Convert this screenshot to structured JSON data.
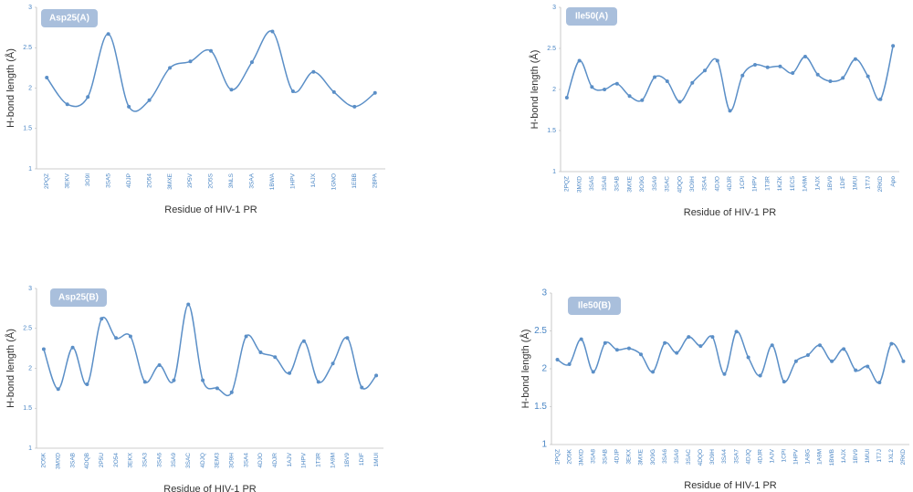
{
  "chart_data": [
    {
      "type": "line",
      "title": "Asp25(A)",
      "ylabel": "H-bond length  (Å)",
      "xlabel": "Residue of HIV-1 PR",
      "color": "#5b8fc7",
      "categories": [
        "2PQZ",
        "3EKV",
        "3O9I",
        "3SA5",
        "4DJP",
        "2O54",
        "3MXE",
        "2P5V",
        "2O5S",
        "3NLS",
        "3SAA",
        "1BWA",
        "1HPV",
        "1AJX",
        "1GNO",
        "1EBB",
        "2BPA"
      ],
      "values": [
        2.13,
        1.8,
        1.89,
        2.67,
        1.77,
        1.85,
        2.25,
        2.33,
        2.46,
        1.98,
        2.32,
        2.7,
        1.96,
        2.2,
        1.95,
        1.77,
        1.94
      ],
      "ylim": [
        1,
        3
      ],
      "yticks": [
        1,
        1.5,
        2,
        2.5,
        3
      ]
    },
    {
      "type": "line",
      "title": "Ile50(A)",
      "ylabel": "H-bond length  (Å)",
      "xlabel": "Residue of HIV-1 PR",
      "color": "#5b8fc7",
      "categories": [
        "2PQZ",
        "3MXD",
        "3SA5",
        "3SA8",
        "3SAB",
        "3MXE",
        "3O9G",
        "3SA9",
        "3SAC",
        "4DQO",
        "3O9H",
        "3SA4",
        "4DJO",
        "4DJR",
        "1CPI",
        "1HPV",
        "1T3R",
        "1KZK",
        "1EC5",
        "1A9M",
        "1AJX",
        "1BV9",
        "1DIF",
        "1MUI",
        "1T7J",
        "2RKD",
        "Apo"
      ],
      "values": [
        1.9,
        2.35,
        2.03,
        2.0,
        2.07,
        1.92,
        1.87,
        2.15,
        2.1,
        1.85,
        2.08,
        2.23,
        2.35,
        1.74,
        2.17,
        2.3,
        2.27,
        2.28,
        2.2,
        2.4,
        2.18,
        2.1,
        2.14,
        2.37,
        2.16,
        1.88,
        2.53
      ],
      "ylim": [
        1,
        3
      ],
      "yticks": [
        1,
        1.5,
        2,
        2.5,
        3
      ]
    },
    {
      "type": "line",
      "title": "Asp25(B)",
      "ylabel": "H-bond length  (Å)",
      "xlabel": "Residue of HIV-1 PR",
      "color": "#5b8fc7",
      "categories": [
        "2O5K",
        "3MXD",
        "3SAB",
        "4DQB",
        "2P5U",
        "2O54",
        "3EKX",
        "3SA3",
        "3SA6",
        "3SA9",
        "3SAC",
        "4DJQ",
        "3EM3",
        "3O9H",
        "3SA4",
        "4DJO",
        "4DJR",
        "1AJV",
        "1HPV",
        "1T3R",
        "1A9M",
        "1BV9",
        "1DIF",
        "1MUI"
      ],
      "values": [
        2.24,
        1.74,
        2.26,
        1.8,
        2.62,
        2.38,
        2.4,
        1.83,
        2.04,
        1.85,
        2.8,
        1.85,
        1.75,
        1.7,
        2.4,
        2.2,
        2.14,
        1.94,
        2.34,
        1.83,
        2.06,
        2.38,
        1.76,
        1.91
      ],
      "ylim": [
        1,
        3
      ],
      "yticks": [
        1,
        1.5,
        2,
        2.5,
        3
      ]
    },
    {
      "type": "line",
      "title": "Ile50(B)",
      "ylabel": "H-bond length  (Å)",
      "xlabel": "Residue of HIV-1 PR",
      "color": "#5b8fc7",
      "categories": [
        "2PQZ",
        "2O5K",
        "3MXD",
        "3SA8",
        "3SAB",
        "4DJP",
        "3EKX",
        "3MXE",
        "3O9G",
        "3SA6",
        "3SA9",
        "3SAC",
        "4DQO",
        "3O9H",
        "3SA4",
        "3SA7",
        "4DJQ",
        "4DJR",
        "1AJV",
        "1CPI",
        "1HPV",
        "1A8G",
        "1A9M",
        "1BWB",
        "1AJX",
        "1BV9",
        "1MUI",
        "1T7J",
        "1XL2",
        "2RKD"
      ],
      "values": [
        2.12,
        2.06,
        2.39,
        1.96,
        2.34,
        2.25,
        2.27,
        2.19,
        1.96,
        2.34,
        2.21,
        2.42,
        2.3,
        2.42,
        1.93,
        2.49,
        2.15,
        1.91,
        2.31,
        1.83,
        2.1,
        2.18,
        2.31,
        2.1,
        2.26,
        1.98,
        2.03,
        1.82,
        2.33,
        2.1
      ],
      "ylim": [
        1,
        3
      ],
      "yticks": [
        1,
        1.5,
        2,
        2.5,
        3
      ]
    }
  ]
}
